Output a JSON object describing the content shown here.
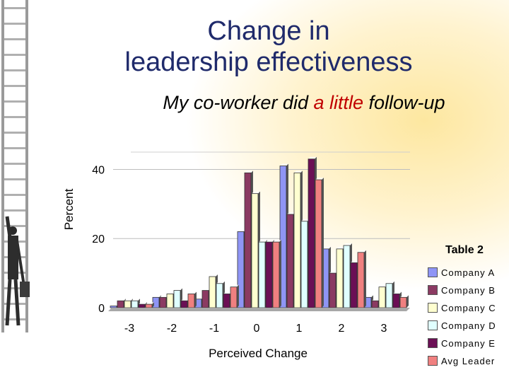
{
  "slide": {
    "title_line1": "Change in",
    "title_line2": "leadership effectiveness",
    "subtitle_pre": "My co-worker did ",
    "subtitle_highlight": "a little",
    "subtitle_post": " follow-up",
    "table_label": "Table 2"
  },
  "colors": {
    "title": "#1f2a6b",
    "highlight": "#c00000"
  },
  "chart_data": {
    "type": "bar",
    "title": "",
    "xlabel": "Perceived Change",
    "ylabel": "Percent",
    "categories": [
      "-3",
      "-2",
      "-1",
      "0",
      "1",
      "2",
      "3"
    ],
    "ylim": [
      0,
      45
    ],
    "yticks": [
      0,
      20,
      40
    ],
    "grid": true,
    "legend_position": "right",
    "series": [
      {
        "name": "Company A",
        "color": "#8f95f5",
        "values": [
          0.5,
          3,
          2.5,
          22,
          41,
          17,
          3
        ]
      },
      {
        "name": "Company B",
        "color": "#8b3a62",
        "values": [
          2,
          3,
          5,
          39,
          27,
          10,
          2
        ]
      },
      {
        "name": "Company C",
        "color": "#ffffd0",
        "values": [
          2,
          4,
          9,
          33,
          39,
          17,
          6
        ]
      },
      {
        "name": "Company D",
        "color": "#e0ffff",
        "values": [
          2,
          5,
          7,
          19,
          25,
          18,
          7
        ]
      },
      {
        "name": "Company E",
        "color": "#6b0f55",
        "values": [
          1,
          2,
          4,
          19,
          43,
          13,
          4
        ]
      },
      {
        "name": "Avg Leader",
        "color": "#f08080",
        "values": [
          1,
          4,
          6,
          19,
          37,
          16,
          3
        ]
      }
    ]
  }
}
